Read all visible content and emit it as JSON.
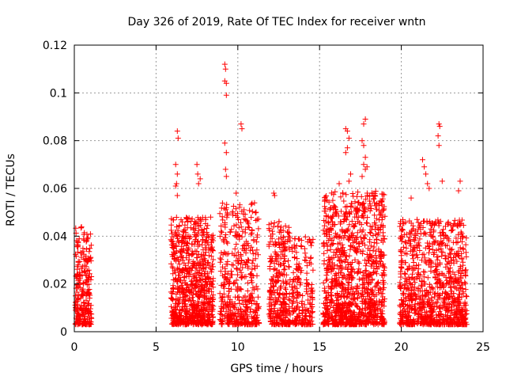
{
  "chart_data": {
    "type": "scatter",
    "title": "Day 326 of 2019, Rate Of TEC Index for receiver wntn",
    "xlabel": "GPS time / hours",
    "ylabel": "ROTI / TECUs",
    "xlim": [
      0,
      25
    ],
    "ylim": [
      0,
      0.12
    ],
    "xticks": [
      0,
      5,
      10,
      15,
      20,
      25
    ],
    "yticks": [
      0,
      0.02,
      0.04,
      0.06,
      0.08,
      0.1,
      0.12
    ],
    "xtick_labels": [
      "0",
      "5",
      "10",
      "15",
      "20",
      "25"
    ],
    "ytick_labels": [
      "0",
      "0.02",
      "0.04",
      "0.06",
      "0.08",
      "0.1",
      "0.12"
    ],
    "grid": true,
    "marker": "+",
    "color": "#ff0000",
    "series": [
      {
        "name": "ROTI",
        "note": "dense point clouds; approximate ranges and outliers read from figure",
        "clusters": [
          {
            "x_range": [
              0.05,
              1.05
            ],
            "y_max": 0.044,
            "density": 260
          },
          {
            "x_range": [
              5.9,
              8.5
            ],
            "y_max": 0.048,
            "density": 800
          },
          {
            "x_range": [
              8.9,
              11.3
            ],
            "y_max": 0.054,
            "density": 450
          },
          {
            "x_range": [
              11.9,
              13.2
            ],
            "y_max": 0.047,
            "density": 300
          },
          {
            "x_range": [
              13.3,
              14.6
            ],
            "y_max": 0.04,
            "density": 200
          },
          {
            "x_range": [
              15.2,
              19.0
            ],
            "y_max": 0.059,
            "density": 1100
          },
          {
            "x_range": [
              19.9,
              24.0
            ],
            "y_max": 0.047,
            "density": 950
          }
        ],
        "outliers": [
          [
            6.3,
            0.084
          ],
          [
            6.35,
            0.081
          ],
          [
            6.2,
            0.07
          ],
          [
            6.3,
            0.066
          ],
          [
            6.25,
            0.062
          ],
          [
            6.2,
            0.061
          ],
          [
            6.3,
            0.057
          ],
          [
            7.5,
            0.07
          ],
          [
            7.55,
            0.066
          ],
          [
            7.6,
            0.062
          ],
          [
            7.7,
            0.064
          ],
          [
            9.2,
            0.112
          ],
          [
            9.25,
            0.11
          ],
          [
            9.2,
            0.105
          ],
          [
            9.3,
            0.104
          ],
          [
            9.3,
            0.099
          ],
          [
            9.2,
            0.079
          ],
          [
            9.3,
            0.075
          ],
          [
            9.25,
            0.068
          ],
          [
            9.3,
            0.065
          ],
          [
            10.2,
            0.087
          ],
          [
            10.25,
            0.085
          ],
          [
            9.9,
            0.058
          ],
          [
            12.2,
            0.058
          ],
          [
            12.25,
            0.057
          ],
          [
            16.6,
            0.085
          ],
          [
            16.7,
            0.084
          ],
          [
            16.8,
            0.081
          ],
          [
            16.7,
            0.077
          ],
          [
            16.6,
            0.075
          ],
          [
            16.2,
            0.062
          ],
          [
            16.8,
            0.063
          ],
          [
            16.9,
            0.066
          ],
          [
            17.8,
            0.089
          ],
          [
            17.7,
            0.087
          ],
          [
            17.6,
            0.08
          ],
          [
            17.7,
            0.078
          ],
          [
            17.8,
            0.073
          ],
          [
            17.7,
            0.07
          ],
          [
            17.8,
            0.068
          ],
          [
            17.9,
            0.069
          ],
          [
            17.6,
            0.065
          ],
          [
            22.3,
            0.087
          ],
          [
            22.35,
            0.086
          ],
          [
            22.25,
            0.082
          ],
          [
            22.3,
            0.078
          ],
          [
            21.3,
            0.072
          ],
          [
            21.4,
            0.069
          ],
          [
            21.5,
            0.066
          ],
          [
            21.6,
            0.062
          ],
          [
            21.7,
            0.06
          ],
          [
            23.6,
            0.063
          ],
          [
            23.5,
            0.059
          ],
          [
            20.6,
            0.056
          ],
          [
            22.5,
            0.063
          ]
        ]
      }
    ]
  }
}
